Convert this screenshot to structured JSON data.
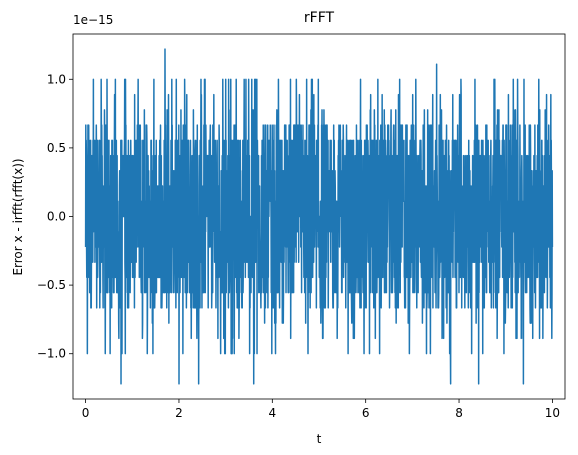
{
  "chart_data": {
    "type": "line",
    "title": "rFFT",
    "xlabel": "t",
    "ylabel": "Error x - irfft(rfft(x))",
    "y_offset_label": "1e−15",
    "xlim": [
      -0.27,
      10.27
    ],
    "ylim": [
      -1.33,
      1.33
    ],
    "xticks": [
      0,
      2,
      4,
      6,
      8,
      10
    ],
    "xtick_labels": [
      "0",
      "2",
      "4",
      "6",
      "8",
      "10"
    ],
    "yticks": [
      -1.0,
      -0.5,
      0.0,
      0.5,
      1.0
    ],
    "ytick_labels": [
      "−1.0",
      "−0.5",
      "0.0",
      "0.5",
      "1.0"
    ],
    "grid": false,
    "legend": "none",
    "series": [
      {
        "color": "#1f77b4",
        "x_range": [
          0,
          10
        ],
        "envelope_upper": 0.67,
        "envelope_lower": -0.67,
        "spikes": [
          {
            "x": 1.7,
            "y": 1.22
          },
          {
            "x": 7.52,
            "y": 1.11
          },
          {
            "x": 0.76,
            "y": -1.22
          },
          {
            "x": 2.0,
            "y": -1.22
          },
          {
            "x": 2.42,
            "y": -1.22
          },
          {
            "x": 3.6,
            "y": -1.22
          },
          {
            "x": 7.82,
            "y": -1.22
          },
          {
            "x": 8.42,
            "y": -1.22
          },
          {
            "x": 9.38,
            "y": -1.22
          }
        ]
      }
    ]
  }
}
